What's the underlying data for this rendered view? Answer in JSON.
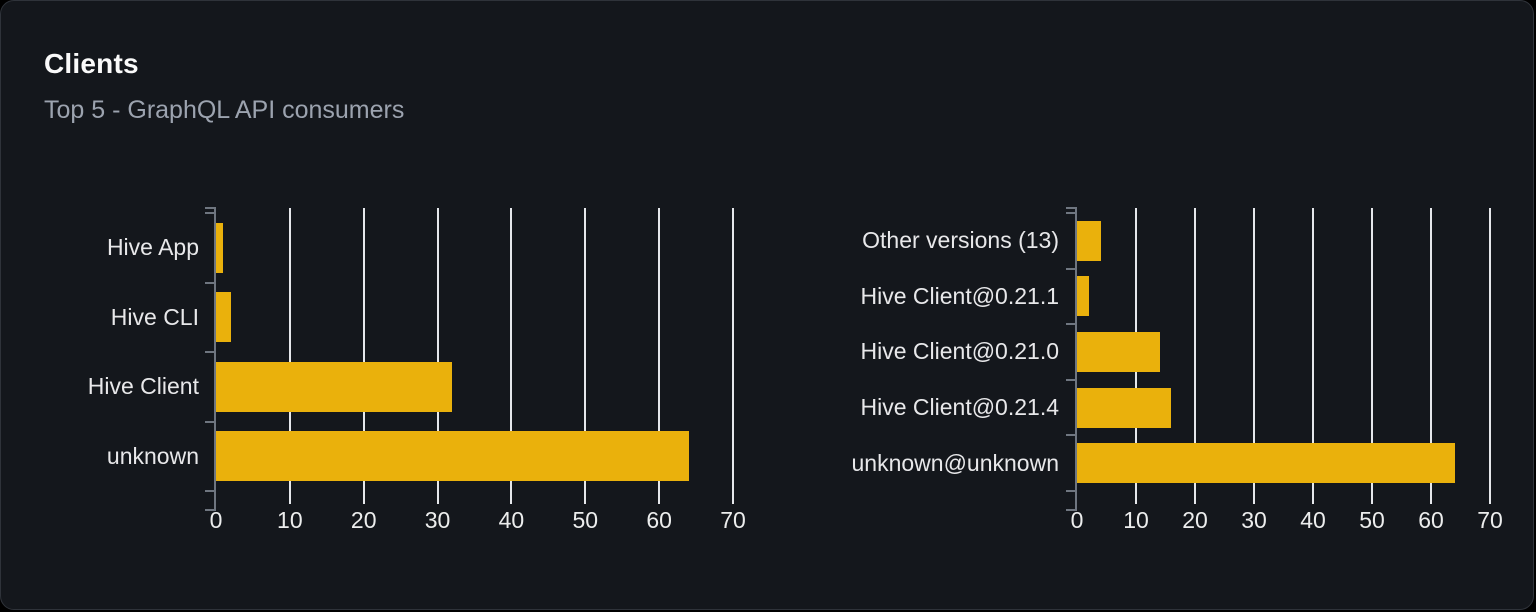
{
  "card": {
    "title": "Clients",
    "subtitle": "Top 5 - GraphQL API consumers"
  },
  "colors": {
    "outer_background": "#000000",
    "card_background": "#14171c",
    "card_border": "#2f333a",
    "title_text": "#fafafa",
    "subtitle_text": "#9ca3af",
    "bar_fill": "#eab10c",
    "gridline": "#e5e7eb",
    "axis": "#6f7680",
    "category_label_text": "#e8e8ea",
    "tick_label_text": "#eceded"
  },
  "chart_data": [
    {
      "type": "bar",
      "orientation": "horizontal",
      "title": "",
      "categories": [
        "Hive App",
        "Hive CLI",
        "Hive Client",
        "unknown"
      ],
      "values": [
        1,
        2,
        32,
        64
      ],
      "xlim": [
        0,
        70
      ],
      "xticks": [
        0,
        10,
        20,
        30,
        40,
        50,
        60,
        70
      ],
      "grid": true,
      "legend": "none",
      "bar_color": "#eab10c"
    },
    {
      "type": "bar",
      "orientation": "horizontal",
      "title": "",
      "categories": [
        "Other versions (13)",
        "Hive Client@0.21.1",
        "Hive Client@0.21.0",
        "Hive Client@0.21.4",
        "unknown@unknown"
      ],
      "values": [
        4,
        2,
        14,
        16,
        64
      ],
      "xlim": [
        0,
        70
      ],
      "xticks": [
        0,
        10,
        20,
        30,
        40,
        50,
        60,
        70
      ],
      "grid": true,
      "legend": "none",
      "bar_color": "#eab10c"
    }
  ]
}
